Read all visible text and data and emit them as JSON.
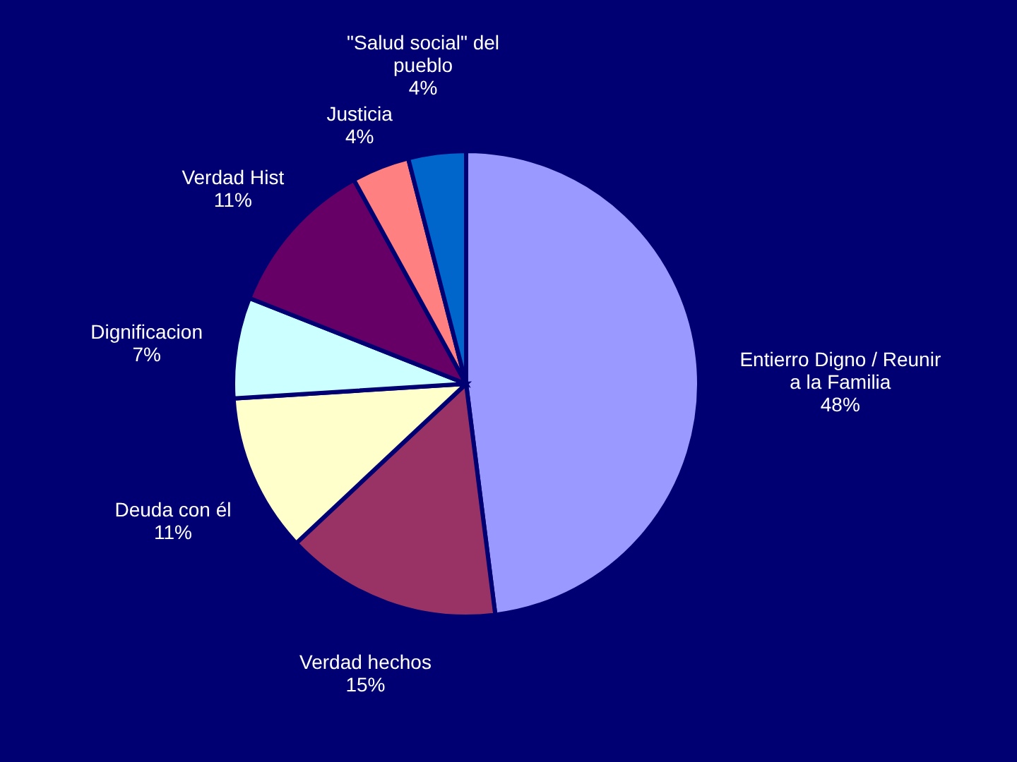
{
  "chart_data": {
    "type": "pie",
    "categories": [
      "Entierro Digno / Reunir a la Familia",
      "Verdad hechos",
      "Deuda con él",
      "Dignificacion",
      "Verdad Hist",
      "Justicia",
      "\"Salud social\" del pueblo"
    ],
    "values": [
      48,
      15,
      11,
      7,
      11,
      4,
      4
    ],
    "colors": [
      "#9999ff",
      "#993366",
      "#ffffcc",
      "#ccffff",
      "#660066",
      "#ff8080",
      "#0066cc"
    ],
    "value_labels": [
      "48%",
      "15%",
      "11%",
      "7%",
      "11%",
      "4%",
      "4%"
    ]
  }
}
